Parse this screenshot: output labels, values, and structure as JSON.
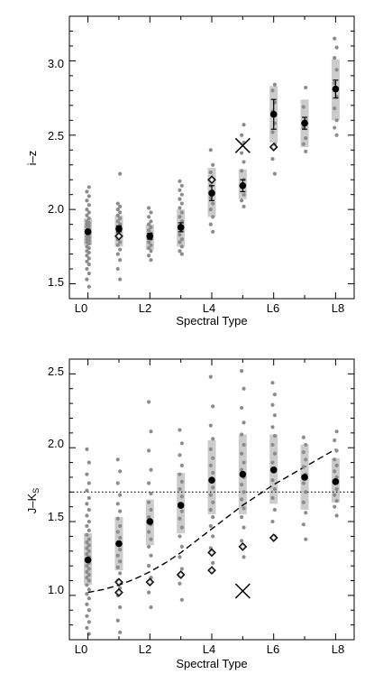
{
  "chart_data": [
    {
      "type": "scatter",
      "title": "",
      "xlabel": "Spectral Type",
      "ylabel": "i–z",
      "xlim": [
        -0.6,
        8.6
      ],
      "ylim": [
        1.4,
        3.3
      ],
      "x_ticks": [
        0,
        2,
        4,
        6,
        8
      ],
      "x_tick_labels": [
        "L0",
        "L2",
        "L4",
        "L6",
        "L8"
      ],
      "y_ticks": [
        1.5,
        2.0,
        2.5,
        3.0
      ],
      "y_tick_labels": [
        "1.5",
        "2.0",
        "2.5",
        "3.0"
      ],
      "grid": false,
      "colors": {
        "points": "#8c8c8c",
        "range_bar": "#cccccc",
        "mean": "#000000",
        "diamond": "#555555"
      },
      "range_bars": [
        {
          "x": 0,
          "low": 1.76,
          "high": 1.94
        },
        {
          "x": 1,
          "low": 1.75,
          "high": 1.96
        },
        {
          "x": 2,
          "low": 1.73,
          "high": 1.9
        },
        {
          "x": 3,
          "low": 1.75,
          "high": 2.0
        },
        {
          "x": 4,
          "low": 1.95,
          "high": 2.28
        },
        {
          "x": 5,
          "low": 2.07,
          "high": 2.27
        },
        {
          "x": 6,
          "low": 2.45,
          "high": 2.83
        },
        {
          "x": 7,
          "low": 2.42,
          "high": 2.74
        },
        {
          "x": 8,
          "low": 2.6,
          "high": 3.01
        }
      ],
      "means": [
        {
          "x": 0,
          "y": 1.85,
          "err": 0.01
        },
        {
          "x": 1,
          "y": 1.87,
          "err": 0.02
        },
        {
          "x": 2,
          "y": 1.82,
          "err": 0.02
        },
        {
          "x": 3,
          "y": 1.88,
          "err": 0.03
        },
        {
          "x": 4,
          "y": 2.11,
          "err": 0.05
        },
        {
          "x": 5,
          "y": 2.16,
          "err": 0.04
        },
        {
          "x": 6,
          "y": 2.64,
          "err": 0.1
        },
        {
          "x": 7,
          "y": 2.58,
          "err": 0.04
        },
        {
          "x": 8,
          "y": 2.81,
          "err": 0.06
        }
      ],
      "points": [
        {
          "x": 0,
          "y": [
            1.48,
            1.53,
            1.57,
            1.6,
            1.63,
            1.65,
            1.67,
            1.69,
            1.71,
            1.72,
            1.74,
            1.75,
            1.77,
            1.78,
            1.79,
            1.8,
            1.81,
            1.82,
            1.83,
            1.84,
            1.85,
            1.86,
            1.87,
            1.88,
            1.89,
            1.9,
            1.91,
            1.92,
            1.94,
            1.96,
            1.98,
            2.0,
            2.03,
            2.06,
            2.09,
            2.12,
            2.15
          ]
        },
        {
          "x": 1,
          "y": [
            1.53,
            1.6,
            1.66,
            1.7,
            1.73,
            1.76,
            1.78,
            1.8,
            1.82,
            1.84,
            1.86,
            1.88,
            1.9,
            1.92,
            1.94,
            1.96,
            1.98,
            2.0,
            2.02,
            2.04,
            2.24
          ]
        },
        {
          "x": 2,
          "y": [
            1.66,
            1.69,
            1.72,
            1.74,
            1.76,
            1.78,
            1.8,
            1.82,
            1.84,
            1.86,
            1.88,
            1.9,
            1.92,
            1.95,
            1.98,
            2.01
          ]
        },
        {
          "x": 3,
          "y": [
            1.7,
            1.72,
            1.75,
            1.78,
            1.8,
            1.83,
            1.86,
            1.89,
            1.92,
            1.95,
            1.98,
            2.01,
            2.04,
            2.07,
            2.1,
            2.13,
            2.16,
            2.19
          ]
        },
        {
          "x": 4,
          "y": [
            1.85,
            1.9,
            1.95,
            2.0,
            2.04,
            2.08,
            2.12,
            2.16,
            2.2,
            2.25,
            2.3,
            2.4
          ]
        },
        {
          "x": 5,
          "y": [
            2.02,
            2.06,
            2.1,
            2.15,
            2.2,
            2.26,
            2.32,
            2.38,
            2.45,
            2.5,
            2.57
          ]
        },
        {
          "x": 6,
          "y": [
            2.24,
            2.34,
            2.44,
            2.52,
            2.58,
            2.66,
            2.72,
            2.8,
            2.84
          ]
        },
        {
          "x": 7,
          "y": [
            2.39,
            2.44,
            2.48,
            2.55,
            2.6,
            2.69,
            2.82
          ]
        },
        {
          "x": 8,
          "y": [
            2.5,
            2.55,
            2.6,
            2.68,
            2.76,
            2.85,
            2.94,
            3.02,
            3.09,
            3.15
          ]
        }
      ],
      "diamonds": [
        {
          "x": 1,
          "y": 1.82
        },
        {
          "x": 4,
          "y": 2.2
        },
        {
          "x": 6,
          "y": 2.42
        }
      ],
      "crosses": [
        {
          "x": 5,
          "y": 2.43
        }
      ]
    },
    {
      "type": "scatter",
      "title": "",
      "xlabel": "Spectral Type",
      "ylabel": "J–K",
      "ylabel_subscript": "S",
      "xlim": [
        -0.6,
        8.6
      ],
      "ylim": [
        0.7,
        2.6
      ],
      "x_ticks": [
        0,
        2,
        4,
        6,
        8
      ],
      "x_tick_labels": [
        "L0",
        "L2",
        "L4",
        "L6",
        "L8"
      ],
      "y_ticks": [
        1.0,
        1.5,
        2.0,
        2.5
      ],
      "y_tick_labels": [
        "1.0",
        "1.5",
        "2.0",
        "2.5"
      ],
      "grid": false,
      "colors": {
        "points": "#8c8c8c",
        "range_bar": "#cccccc",
        "mean": "#000000",
        "diamond": "#555555",
        "curve": "#000000"
      },
      "hline": {
        "y": 1.7,
        "style": "dotted"
      },
      "dashed_curve": {
        "x": [
          0,
          0.5,
          1,
          1.5,
          2,
          2.5,
          3,
          3.5,
          4,
          4.5,
          5,
          5.5,
          6,
          6.5,
          7,
          7.5,
          8
        ],
        "y": [
          1.02,
          1.04,
          1.07,
          1.11,
          1.16,
          1.22,
          1.29,
          1.37,
          1.45,
          1.53,
          1.61,
          1.68,
          1.75,
          1.81,
          1.87,
          1.93,
          1.99
        ]
      },
      "range_bars": [
        {
          "x": 0,
          "low": 1.07,
          "high": 1.42
        },
        {
          "x": 1,
          "low": 1.17,
          "high": 1.53
        },
        {
          "x": 2,
          "low": 1.34,
          "high": 1.65
        },
        {
          "x": 3,
          "low": 1.42,
          "high": 1.83
        },
        {
          "x": 4,
          "low": 1.55,
          "high": 2.05
        },
        {
          "x": 5,
          "low": 1.55,
          "high": 2.09
        },
        {
          "x": 6,
          "low": 1.62,
          "high": 2.09
        },
        {
          "x": 7,
          "low": 1.58,
          "high": 2.02
        },
        {
          "x": 8,
          "low": 1.63,
          "high": 1.93
        }
      ],
      "means": [
        {
          "x": 0,
          "y": 1.24
        },
        {
          "x": 1,
          "y": 1.35
        },
        {
          "x": 2,
          "y": 1.5
        },
        {
          "x": 3,
          "y": 1.61
        },
        {
          "x": 4,
          "y": 1.78
        },
        {
          "x": 5,
          "y": 1.82
        },
        {
          "x": 6,
          "y": 1.85
        },
        {
          "x": 7,
          "y": 1.8
        },
        {
          "x": 8,
          "y": 1.77
        }
      ],
      "points": [
        {
          "x": 0,
          "y": [
            0.74,
            0.78,
            0.82,
            0.86,
            0.9,
            0.94,
            0.98,
            1.01,
            1.04,
            1.07,
            1.1,
            1.12,
            1.14,
            1.16,
            1.18,
            1.2,
            1.22,
            1.24,
            1.26,
            1.28,
            1.3,
            1.32,
            1.34,
            1.36,
            1.38,
            1.41,
            1.44,
            1.47,
            1.5,
            1.54,
            1.58,
            1.62,
            1.66,
            1.71,
            1.76,
            1.82,
            1.9,
            1.99
          ]
        },
        {
          "x": 1,
          "y": [
            0.75,
            0.83,
            0.92,
            1.0,
            1.05,
            1.1,
            1.15,
            1.19,
            1.23,
            1.27,
            1.31,
            1.35,
            1.39,
            1.43,
            1.47,
            1.52,
            1.57,
            1.62,
            1.68,
            1.76,
            1.84,
            1.92
          ]
        },
        {
          "x": 2,
          "y": [
            0.92,
            1.02,
            1.12,
            1.2,
            1.27,
            1.33,
            1.38,
            1.43,
            1.48,
            1.53,
            1.58,
            1.63,
            1.69,
            1.76,
            1.85,
            1.98,
            2.11,
            2.31
          ]
        },
        {
          "x": 3,
          "y": [
            0.97,
            1.08,
            1.18,
            1.26,
            1.33,
            1.4,
            1.46,
            1.52,
            1.57,
            1.62,
            1.67,
            1.72,
            1.77,
            1.82,
            1.88,
            1.95,
            2.03,
            2.12
          ]
        },
        {
          "x": 4,
          "y": [
            1.22,
            1.32,
            1.4,
            1.47,
            1.53,
            1.58,
            1.63,
            1.68,
            1.73,
            1.78,
            1.83,
            1.88,
            1.93,
            1.99,
            2.06,
            2.15,
            2.28,
            2.48
          ]
        },
        {
          "x": 5,
          "y": [
            1.26,
            1.37,
            1.46,
            1.53,
            1.59,
            1.65,
            1.7,
            1.75,
            1.8,
            1.85,
            1.9,
            1.96,
            2.02,
            2.09,
            2.17,
            2.27,
            2.4,
            2.52
          ]
        },
        {
          "x": 6,
          "y": [
            1.4,
            1.5,
            1.58,
            1.66,
            1.72,
            1.78,
            1.84,
            1.9,
            1.96,
            2.02,
            2.08,
            2.14,
            2.22,
            2.29,
            2.36,
            2.44
          ]
        },
        {
          "x": 7,
          "y": [
            1.38,
            1.48,
            1.56,
            1.63,
            1.7,
            1.76,
            1.82,
            1.87,
            1.92,
            1.97,
            2.02,
            2.07
          ]
        },
        {
          "x": 8,
          "y": [
            1.54,
            1.6,
            1.64,
            1.68,
            1.72,
            1.76,
            1.8,
            1.84,
            1.88,
            1.92,
            1.98,
            2.05,
            2.11
          ]
        }
      ],
      "diamonds": [
        {
          "x": 1,
          "y": 1.02
        },
        {
          "x": 1,
          "y": 1.09
        },
        {
          "x": 2,
          "y": 1.09
        },
        {
          "x": 3,
          "y": 1.14
        },
        {
          "x": 4,
          "y": 1.17
        },
        {
          "x": 4,
          "y": 1.29
        },
        {
          "x": 5,
          "y": 1.33
        },
        {
          "x": 6,
          "y": 1.39
        }
      ],
      "crosses": [
        {
          "x": 5,
          "y": 1.03
        }
      ]
    }
  ]
}
